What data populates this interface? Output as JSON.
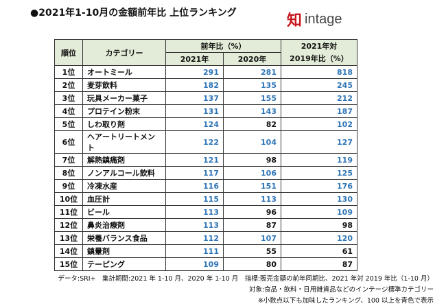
{
  "title": "●2021年1-10月の金額前年比 上位ランキング",
  "logo": {
    "mark": "知",
    "word": "intage"
  },
  "header": {
    "rank": "順位",
    "category": "カテゴリー",
    "yoy": "前年比（%）",
    "y2021": "2021年",
    "y2020": "2020年",
    "vs2019_line1": "2021年対",
    "vs2019_line2": "2019年比（%）"
  },
  "highlight_color": "#2e75b6",
  "rows": [
    {
      "rank": "1位",
      "category": "オートミール",
      "y2021": "291",
      "y2020": "281",
      "vs2019": "818"
    },
    {
      "rank": "2位",
      "category": "麦芽飲料",
      "y2021": "182",
      "y2020": "135",
      "vs2019": "245"
    },
    {
      "rank": "3位",
      "category": "玩具メーカー菓子",
      "y2021": "137",
      "y2020": "155",
      "vs2019": "212"
    },
    {
      "rank": "4位",
      "category": "プロテイン粉末",
      "y2021": "131",
      "y2020": "143",
      "vs2019": "187"
    },
    {
      "rank": "5位",
      "category": "しわ取り剤",
      "y2021": "124",
      "y2020": "82",
      "vs2019": "102"
    },
    {
      "rank": "6位",
      "category": "ヘアートリートメント",
      "y2021": "122",
      "y2020": "104",
      "vs2019": "127"
    },
    {
      "rank": "7位",
      "category": "解熱鎮痛剤",
      "y2021": "121",
      "y2020": "98",
      "vs2019": "119"
    },
    {
      "rank": "8位",
      "category": "ノンアルコール飲料",
      "y2021": "117",
      "y2020": "106",
      "vs2019": "125"
    },
    {
      "rank": "9位",
      "category": "冷凍水産",
      "y2021": "116",
      "y2020": "151",
      "vs2019": "176"
    },
    {
      "rank": "10位",
      "category": "血圧計",
      "y2021": "115",
      "y2020": "113",
      "vs2019": "130"
    },
    {
      "rank": "11位",
      "category": "ビール",
      "y2021": "113",
      "y2020": "96",
      "vs2019": "109"
    },
    {
      "rank": "12位",
      "category": "鼻炎治療剤",
      "y2021": "113",
      "y2020": "87",
      "vs2019": "98"
    },
    {
      "rank": "13位",
      "category": "栄養バランス食品",
      "y2021": "112",
      "y2020": "107",
      "vs2019": "120"
    },
    {
      "rank": "14位",
      "category": "鎮暈剤",
      "y2021": "111",
      "y2020": "55",
      "vs2019": "61"
    },
    {
      "rank": "15位",
      "category": "テーピング",
      "y2021": "109",
      "y2020": "80",
      "vs2019": "87"
    }
  ],
  "footer": {
    "line1": "データ:SRI+　集計期間:2021 年 1-10 月、2020 年 1-10 月　指標:販売金額の前年同期比、2021 年対 2019 年比（1-10 月）",
    "line2": "対象:食品・飲料・日用雑貨品などのインテージ標準カテゴリー",
    "line3": "※小数点以下も加味したランキング、100 以上を青色で表示"
  }
}
